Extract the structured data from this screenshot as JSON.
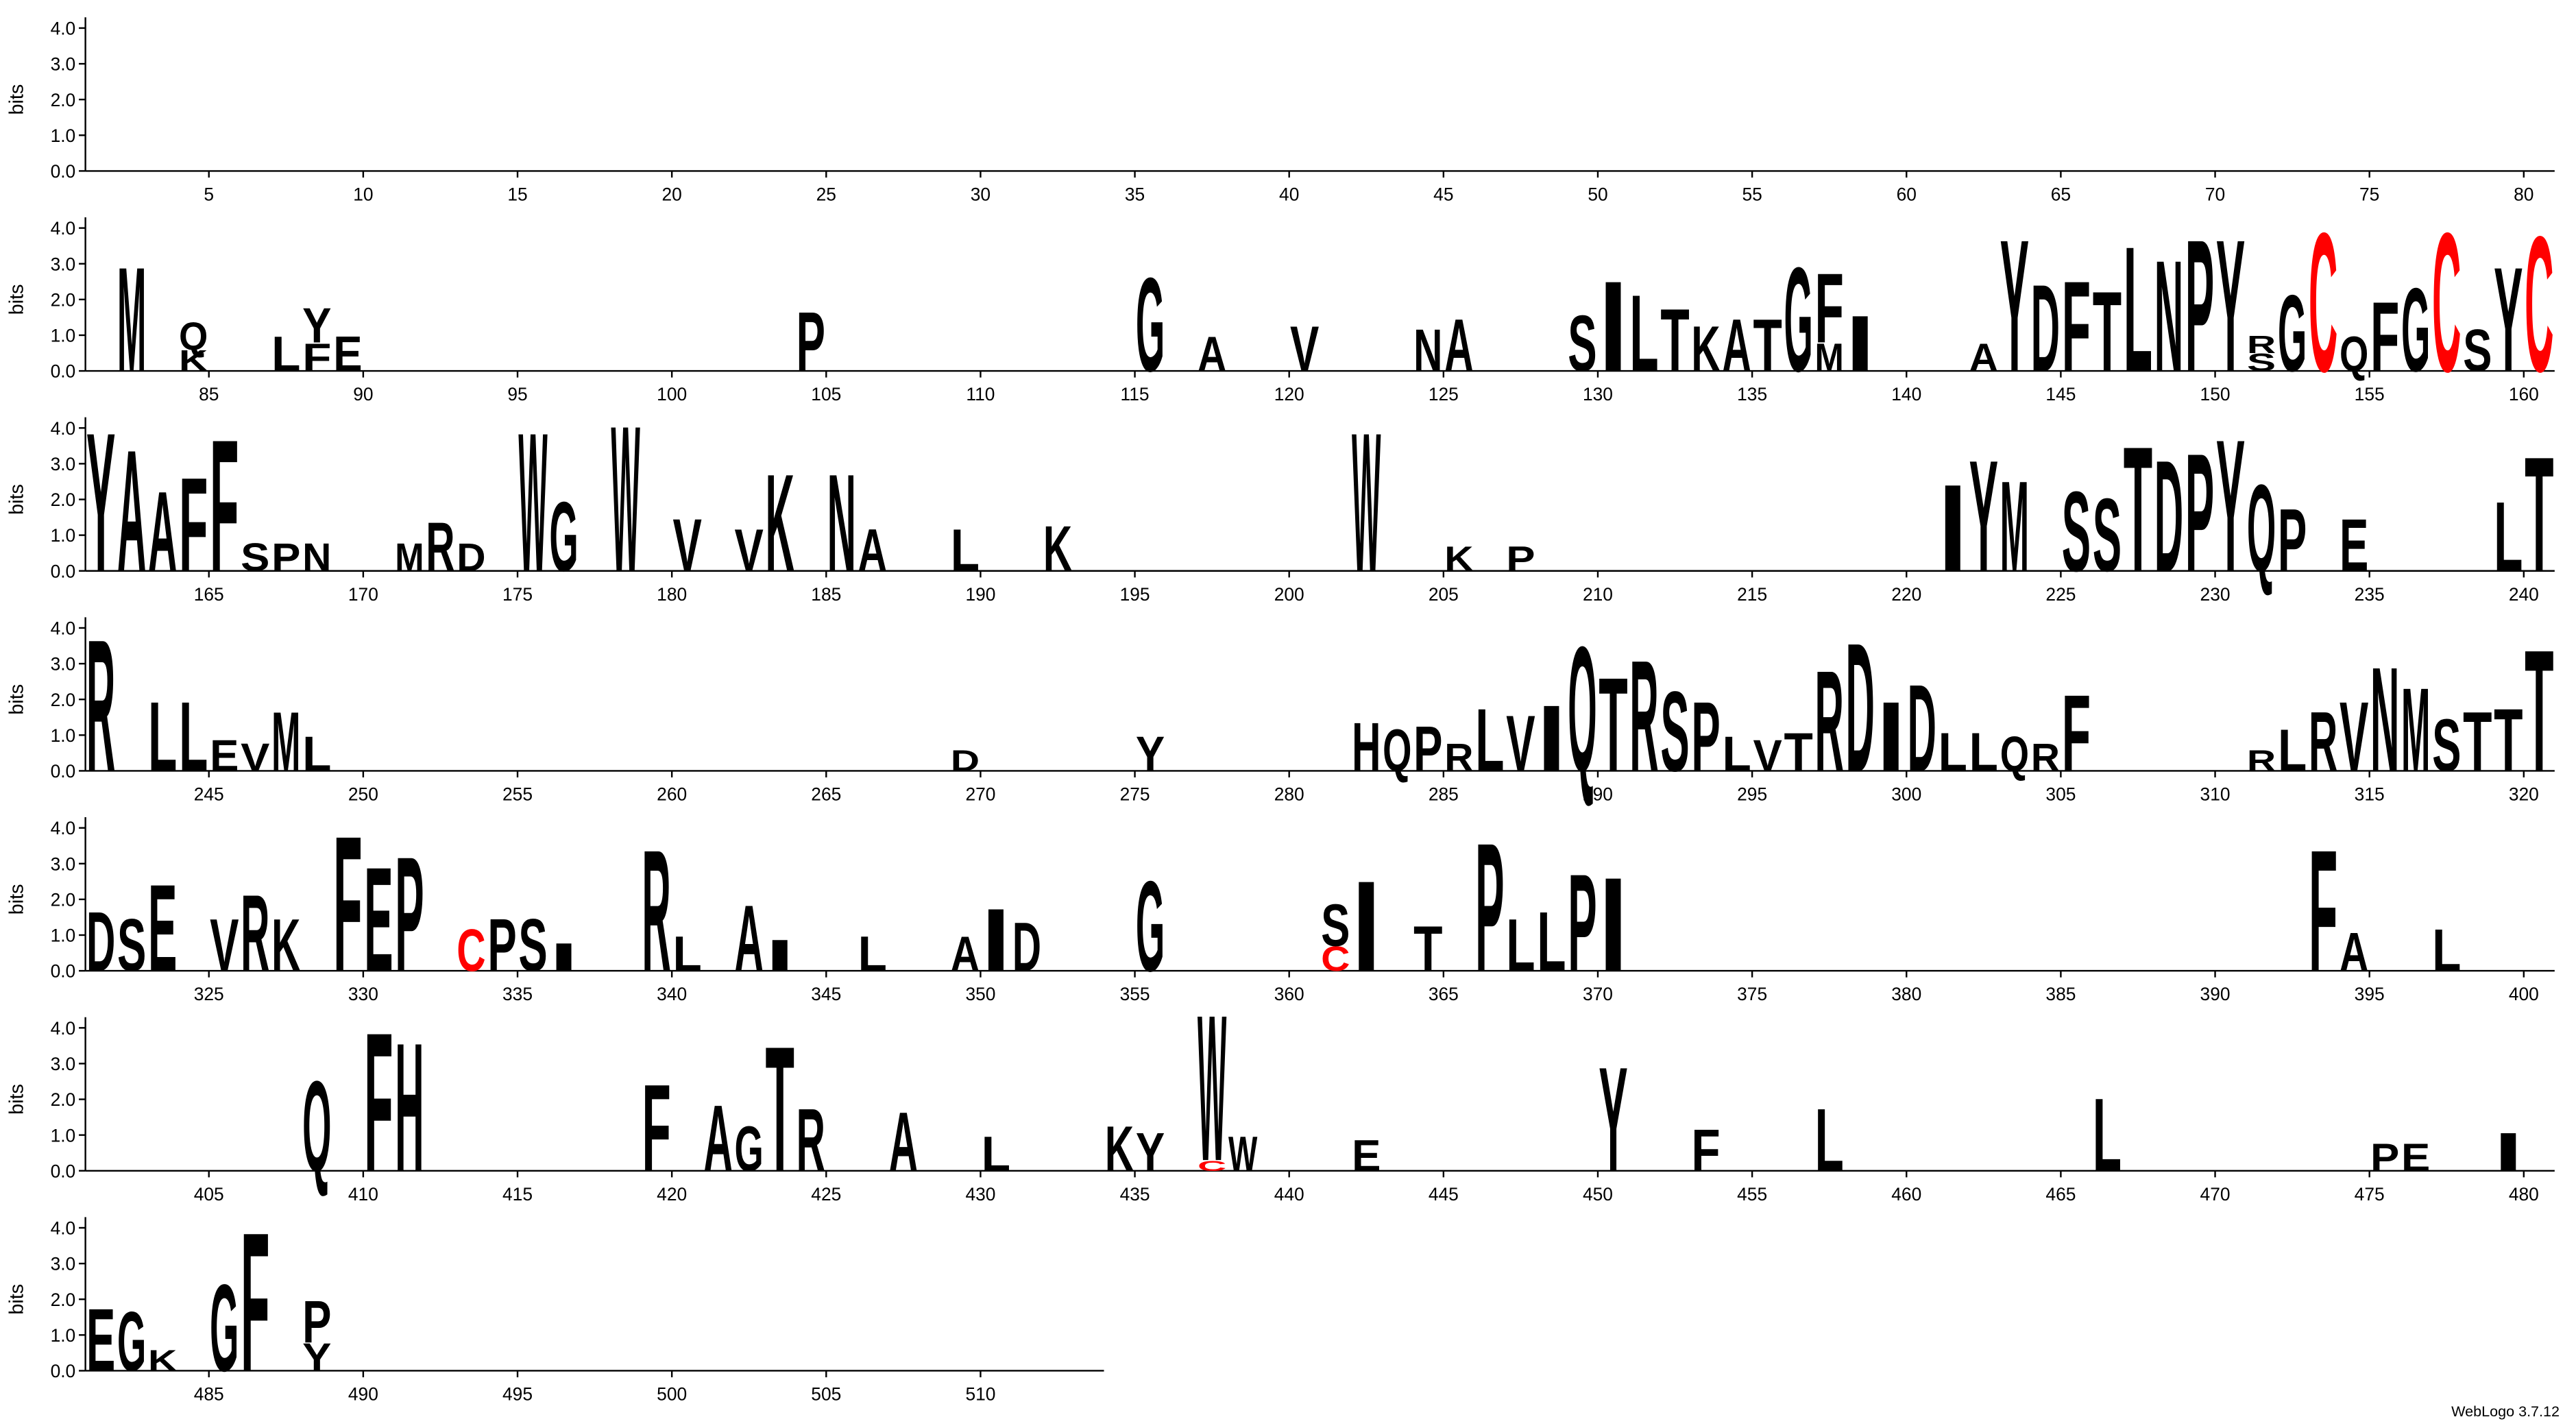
{
  "chart_data": {
    "type": "logo",
    "ylabel": "bits",
    "footer": "WebLogo 3.7.12",
    "ylim": [
      0,
      4.3
    ],
    "yticks": [
      {
        "value": 0,
        "label": "0.0"
      },
      {
        "value": 1,
        "label": "1.0"
      },
      {
        "value": 2,
        "label": "2.0"
      },
      {
        "value": 3,
        "label": "3.0"
      },
      {
        "value": 4,
        "label": "4.0"
      }
    ],
    "color": "#000000",
    "highlight": {
      "letter": "C",
      "color": "#ff0000"
    },
    "rows": [
      {
        "xlim": [
          0.5,
          80.5
        ],
        "xticks": [
          5,
          10,
          15,
          20,
          25,
          30,
          35,
          40,
          45,
          50,
          55,
          60,
          65,
          70,
          75,
          80
        ]
      },
      {
        "xlim": [
          80.5,
          160.5
        ],
        "xticks": [
          85,
          90,
          95,
          100,
          105,
          110,
          115,
          120,
          125,
          130,
          135,
          140,
          145,
          150,
          155,
          160
        ]
      },
      {
        "xlim": [
          160.5,
          240.5
        ],
        "xticks": [
          165,
          170,
          175,
          180,
          185,
          190,
          195,
          200,
          205,
          210,
          215,
          220,
          225,
          230,
          235,
          240
        ]
      },
      {
        "xlim": [
          240.5,
          320.5
        ],
        "xticks": [
          245,
          250,
          255,
          260,
          265,
          270,
          275,
          280,
          285,
          290,
          295,
          300,
          305,
          310,
          315,
          320
        ]
      },
      {
        "xlim": [
          320.5,
          400.5
        ],
        "xticks": [
          325,
          330,
          335,
          340,
          345,
          350,
          355,
          360,
          365,
          370,
          375,
          380,
          385,
          390,
          395,
          400
        ]
      },
      {
        "xlim": [
          400.5,
          480.5
        ],
        "xticks": [
          405,
          410,
          415,
          420,
          425,
          430,
          435,
          440,
          445,
          450,
          455,
          460,
          465,
          470,
          475,
          480
        ]
      },
      {
        "xlim": [
          480.5,
          513.5
        ],
        "xticks": [
          485,
          490,
          495,
          500,
          505,
          510
        ]
      }
    ],
    "letters": [
      {
        "pos": 82,
        "letter": "M",
        "bits": 3.0
      },
      {
        "pos": 84,
        "letter": "K",
        "bits": 0.6
      },
      {
        "pos": 84,
        "letter": "Q",
        "bits": 0.8
      },
      {
        "pos": 87,
        "letter": "L",
        "bits": 1.0
      },
      {
        "pos": 88,
        "letter": "F",
        "bits": 0.8
      },
      {
        "pos": 88,
        "letter": "Y",
        "bits": 1.0
      },
      {
        "pos": 89,
        "letter": "E",
        "bits": 1.0
      },
      {
        "pos": 104,
        "letter": "P",
        "bits": 1.7
      },
      {
        "pos": 115,
        "letter": "G",
        "bits": 2.7
      },
      {
        "pos": 117,
        "letter": "A",
        "bits": 1.0
      },
      {
        "pos": 120,
        "letter": "V",
        "bits": 1.3
      },
      {
        "pos": 124,
        "letter": "N",
        "bits": 1.2
      },
      {
        "pos": 125,
        "letter": "A",
        "bits": 1.5
      },
      {
        "pos": 129,
        "letter": "S",
        "bits": 1.6
      },
      {
        "pos": 130,
        "letter": "I",
        "bits": 2.6
      },
      {
        "pos": 131,
        "letter": "L",
        "bits": 2.2
      },
      {
        "pos": 132,
        "letter": "T",
        "bits": 1.8
      },
      {
        "pos": 133,
        "letter": "K",
        "bits": 1.3
      },
      {
        "pos": 134,
        "letter": "A",
        "bits": 1.5
      },
      {
        "pos": 135,
        "letter": "T",
        "bits": 1.5
      },
      {
        "pos": 136,
        "letter": "G",
        "bits": 3.0
      },
      {
        "pos": 137,
        "letter": "M",
        "bits": 0.8
      },
      {
        "pos": 137,
        "letter": "F",
        "bits": 2.0
      },
      {
        "pos": 138,
        "letter": "I",
        "bits": 1.6
      },
      {
        "pos": 142,
        "letter": "A",
        "bits": 0.8
      },
      {
        "pos": 143,
        "letter": "Y",
        "bits": 3.8
      },
      {
        "pos": 144,
        "letter": "D",
        "bits": 2.5
      },
      {
        "pos": 145,
        "letter": "F",
        "bits": 2.6
      },
      {
        "pos": 146,
        "letter": "T",
        "bits": 2.3
      },
      {
        "pos": 147,
        "letter": "L",
        "bits": 3.6
      },
      {
        "pos": 148,
        "letter": "N",
        "bits": 3.2
      },
      {
        "pos": 149,
        "letter": "P",
        "bits": 3.8
      },
      {
        "pos": 150,
        "letter": "Y",
        "bits": 3.8
      },
      {
        "pos": 151,
        "letter": "S",
        "bits": 0.5
      },
      {
        "pos": 151,
        "letter": "R",
        "bits": 0.5
      },
      {
        "pos": 152,
        "letter": "G",
        "bits": 2.2
      },
      {
        "pos": 153,
        "letter": "C",
        "bits": 4.0
      },
      {
        "pos": 154,
        "letter": "Q",
        "bits": 1.0
      },
      {
        "pos": 155,
        "letter": "F",
        "bits": 2.0
      },
      {
        "pos": 156,
        "letter": "G",
        "bits": 2.4
      },
      {
        "pos": 157,
        "letter": "C",
        "bits": 4.0
      },
      {
        "pos": 158,
        "letter": "S",
        "bits": 1.2
      },
      {
        "pos": 159,
        "letter": "Y",
        "bits": 3.0
      },
      {
        "pos": 160,
        "letter": "C",
        "bits": 3.9
      },
      {
        "pos": 161,
        "letter": "Y",
        "bits": 4.0
      },
      {
        "pos": 162,
        "letter": "A",
        "bits": 3.5
      },
      {
        "pos": 163,
        "letter": "A",
        "bits": 2.3
      },
      {
        "pos": 164,
        "letter": "F",
        "bits": 2.7
      },
      {
        "pos": 165,
        "letter": "F",
        "bits": 3.8
      },
      {
        "pos": 166,
        "letter": "S",
        "bits": 0.8
      },
      {
        "pos": 167,
        "letter": "P",
        "bits": 0.8
      },
      {
        "pos": 168,
        "letter": "N",
        "bits": 0.8
      },
      {
        "pos": 171,
        "letter": "M",
        "bits": 0.8
      },
      {
        "pos": 172,
        "letter": "R",
        "bits": 1.4
      },
      {
        "pos": 173,
        "letter": "D",
        "bits": 0.8
      },
      {
        "pos": 175,
        "letter": "W",
        "bits": 4.0
      },
      {
        "pos": 176,
        "letter": "G",
        "bits": 2.0
      },
      {
        "pos": 178,
        "letter": "W",
        "bits": 4.2
      },
      {
        "pos": 180,
        "letter": "V",
        "bits": 1.5
      },
      {
        "pos": 182,
        "letter": "V",
        "bits": 1.2
      },
      {
        "pos": 183,
        "letter": "K",
        "bits": 2.8
      },
      {
        "pos": 185,
        "letter": "N",
        "bits": 2.8
      },
      {
        "pos": 186,
        "letter": "A",
        "bits": 1.2
      },
      {
        "pos": 189,
        "letter": "L",
        "bits": 1.2
      },
      {
        "pos": 192,
        "letter": "K",
        "bits": 1.3
      },
      {
        "pos": 202,
        "letter": "W",
        "bits": 4.0
      },
      {
        "pos": 205,
        "letter": "K",
        "bits": 0.7
      },
      {
        "pos": 207,
        "letter": "P",
        "bits": 0.7
      },
      {
        "pos": 221,
        "letter": "I",
        "bits": 2.5
      },
      {
        "pos": 222,
        "letter": "Y",
        "bits": 3.2
      },
      {
        "pos": 223,
        "letter": "M",
        "bits": 2.6
      },
      {
        "pos": 225,
        "letter": "S",
        "bits": 2.3
      },
      {
        "pos": 226,
        "letter": "S",
        "bits": 2.1
      },
      {
        "pos": 227,
        "letter": "T",
        "bits": 3.6
      },
      {
        "pos": 228,
        "letter": "D",
        "bits": 3.2
      },
      {
        "pos": 229,
        "letter": "P",
        "bits": 3.4
      },
      {
        "pos": 230,
        "letter": "Y",
        "bits": 3.8
      },
      {
        "pos": 231,
        "letter": "Q",
        "bits": 2.5
      },
      {
        "pos": 232,
        "letter": "P",
        "bits": 1.8
      },
      {
        "pos": 234,
        "letter": "E",
        "bits": 1.5
      },
      {
        "pos": 239,
        "letter": "L",
        "bits": 2.0
      },
      {
        "pos": 240,
        "letter": "T",
        "bits": 3.3
      },
      {
        "pos": 241,
        "letter": "R",
        "bits": 3.8
      },
      {
        "pos": 243,
        "letter": "L",
        "bits": 2.0
      },
      {
        "pos": 244,
        "letter": "L",
        "bits": 2.0
      },
      {
        "pos": 245,
        "letter": "E",
        "bits": 0.9
      },
      {
        "pos": 246,
        "letter": "V",
        "bits": 0.8
      },
      {
        "pos": 247,
        "letter": "M",
        "bits": 1.7
      },
      {
        "pos": 248,
        "letter": "L",
        "bits": 1.0
      },
      {
        "pos": 269,
        "letter": "D",
        "bits": 0.6
      },
      {
        "pos": 275,
        "letter": "Y",
        "bits": 1.0
      },
      {
        "pos": 282,
        "letter": "H",
        "bits": 1.4
      },
      {
        "pos": 283,
        "letter": "Q",
        "bits": 1.2
      },
      {
        "pos": 284,
        "letter": "P",
        "bits": 1.3
      },
      {
        "pos": 285,
        "letter": "R",
        "bits": 0.8
      },
      {
        "pos": 286,
        "letter": "L",
        "bits": 1.8
      },
      {
        "pos": 287,
        "letter": "V",
        "bits": 1.6
      },
      {
        "pos": 288,
        "letter": "I",
        "bits": 1.9
      },
      {
        "pos": 289,
        "letter": "Q",
        "bits": 3.6
      },
      {
        "pos": 290,
        "letter": "T",
        "bits": 2.7
      },
      {
        "pos": 291,
        "letter": "R",
        "bits": 3.2
      },
      {
        "pos": 292,
        "letter": "S",
        "bits": 2.3
      },
      {
        "pos": 293,
        "letter": "P",
        "bits": 2.0
      },
      {
        "pos": 294,
        "letter": "L",
        "bits": 1.0
      },
      {
        "pos": 295,
        "letter": "V",
        "bits": 0.9
      },
      {
        "pos": 296,
        "letter": "T",
        "bits": 1.1
      },
      {
        "pos": 297,
        "letter": "R",
        "bits": 2.9
      },
      {
        "pos": 298,
        "letter": "D",
        "bits": 3.7
      },
      {
        "pos": 299,
        "letter": "I",
        "bits": 2.0
      },
      {
        "pos": 300,
        "letter": "D",
        "bits": 2.5
      },
      {
        "pos": 301,
        "letter": "L",
        "bits": 1.1
      },
      {
        "pos": 302,
        "letter": "L",
        "bits": 1.1
      },
      {
        "pos": 303,
        "letter": "Q",
        "bits": 1.0
      },
      {
        "pos": 304,
        "letter": "R",
        "bits": 0.8
      },
      {
        "pos": 305,
        "letter": "F",
        "bits": 2.2
      },
      {
        "pos": 311,
        "letter": "R",
        "bits": 0.6
      },
      {
        "pos": 312,
        "letter": "L",
        "bits": 1.2
      },
      {
        "pos": 313,
        "letter": "R",
        "bits": 1.7
      },
      {
        "pos": 314,
        "letter": "V",
        "bits": 2.0
      },
      {
        "pos": 315,
        "letter": "N",
        "bits": 3.0
      },
      {
        "pos": 316,
        "letter": "M",
        "bits": 2.4
      },
      {
        "pos": 317,
        "letter": "S",
        "bits": 1.5
      },
      {
        "pos": 318,
        "letter": "T",
        "bits": 1.7
      },
      {
        "pos": 319,
        "letter": "T",
        "bits": 1.8
      },
      {
        "pos": 320,
        "letter": "T",
        "bits": 3.5
      },
      {
        "pos": 321,
        "letter": "D",
        "bits": 1.7
      },
      {
        "pos": 322,
        "letter": "S",
        "bits": 1.5
      },
      {
        "pos": 323,
        "letter": "E",
        "bits": 2.5
      },
      {
        "pos": 325,
        "letter": "V",
        "bits": 1.5
      },
      {
        "pos": 326,
        "letter": "R",
        "bits": 2.2
      },
      {
        "pos": 327,
        "letter": "K",
        "bits": 1.5
      },
      {
        "pos": 329,
        "letter": "F",
        "bits": 3.9
      },
      {
        "pos": 330,
        "letter": "E",
        "bits": 3.0
      },
      {
        "pos": 331,
        "letter": "P",
        "bits": 3.3
      },
      {
        "pos": 333,
        "letter": "C",
        "bits": 1.2
      },
      {
        "pos": 334,
        "letter": "P",
        "bits": 1.5
      },
      {
        "pos": 335,
        "letter": "S",
        "bits": 1.5
      },
      {
        "pos": 336,
        "letter": "I",
        "bits": 0.8
      },
      {
        "pos": 339,
        "letter": "R",
        "bits": 3.5
      },
      {
        "pos": 340,
        "letter": "L",
        "bits": 1.0
      },
      {
        "pos": 342,
        "letter": "A",
        "bits": 1.9
      },
      {
        "pos": 343,
        "letter": "I",
        "bits": 0.9
      },
      {
        "pos": 346,
        "letter": "L",
        "bits": 1.0
      },
      {
        "pos": 349,
        "letter": "A",
        "bits": 1.0
      },
      {
        "pos": 350,
        "letter": "I",
        "bits": 1.8
      },
      {
        "pos": 351,
        "letter": "D",
        "bits": 1.4
      },
      {
        "pos": 355,
        "letter": "G",
        "bits": 2.6
      },
      {
        "pos": 361,
        "letter": "C",
        "bits": 0.7
      },
      {
        "pos": 361,
        "letter": "S",
        "bits": 1.2
      },
      {
        "pos": 362,
        "letter": "I",
        "bits": 2.6
      },
      {
        "pos": 364,
        "letter": "T",
        "bits": 1.3
      },
      {
        "pos": 366,
        "letter": "P",
        "bits": 3.7
      },
      {
        "pos": 367,
        "letter": "L",
        "bits": 1.5
      },
      {
        "pos": 368,
        "letter": "L",
        "bits": 1.7
      },
      {
        "pos": 369,
        "letter": "P",
        "bits": 2.8
      },
      {
        "pos": 370,
        "letter": "I",
        "bits": 2.7
      },
      {
        "pos": 393,
        "letter": "F",
        "bits": 3.5
      },
      {
        "pos": 394,
        "letter": "A",
        "bits": 1.1
      },
      {
        "pos": 397,
        "letter": "L",
        "bits": 1.2
      },
      {
        "pos": 408,
        "letter": "Q",
        "bits": 2.6
      },
      {
        "pos": 410,
        "letter": "F",
        "bits": 4.0
      },
      {
        "pos": 411,
        "letter": "H",
        "bits": 3.7
      },
      {
        "pos": 419,
        "letter": "F",
        "bits": 2.5
      },
      {
        "pos": 421,
        "letter": "A",
        "bits": 1.9
      },
      {
        "pos": 422,
        "letter": "G",
        "bits": 1.3
      },
      {
        "pos": 423,
        "letter": "T",
        "bits": 3.6
      },
      {
        "pos": 424,
        "letter": "R",
        "bits": 1.8
      },
      {
        "pos": 427,
        "letter": "A",
        "bits": 1.7
      },
      {
        "pos": 430,
        "letter": "L",
        "bits": 1.0
      },
      {
        "pos": 434,
        "letter": "K",
        "bits": 1.3
      },
      {
        "pos": 435,
        "letter": "Y",
        "bits": 1.1
      },
      {
        "pos": 437,
        "letter": "C",
        "bits": 0.3
      },
      {
        "pos": 437,
        "letter": "W",
        "bits": 4.2
      },
      {
        "pos": 438,
        "letter": "W",
        "bits": 1.0
      },
      {
        "pos": 442,
        "letter": "E",
        "bits": 0.9
      },
      {
        "pos": 450,
        "letter": "Y",
        "bits": 3.0
      },
      {
        "pos": 453,
        "letter": "F",
        "bits": 1.2
      },
      {
        "pos": 457,
        "letter": "L",
        "bits": 1.8
      },
      {
        "pos": 466,
        "letter": "L",
        "bits": 2.1
      },
      {
        "pos": 475,
        "letter": "P",
        "bits": 0.8
      },
      {
        "pos": 476,
        "letter": "E",
        "bits": 0.8
      },
      {
        "pos": 479,
        "letter": "I",
        "bits": 1.1
      },
      {
        "pos": 481,
        "letter": "E",
        "bits": 1.8
      },
      {
        "pos": 482,
        "letter": "G",
        "bits": 1.7
      },
      {
        "pos": 483,
        "letter": "K",
        "bits": 0.6
      },
      {
        "pos": 485,
        "letter": "G",
        "bits": 2.5
      },
      {
        "pos": 486,
        "letter": "F",
        "bits": 4.0
      },
      {
        "pos": 488,
        "letter": "Y",
        "bits": 0.8
      },
      {
        "pos": 488,
        "letter": "P",
        "bits": 1.2
      }
    ]
  }
}
